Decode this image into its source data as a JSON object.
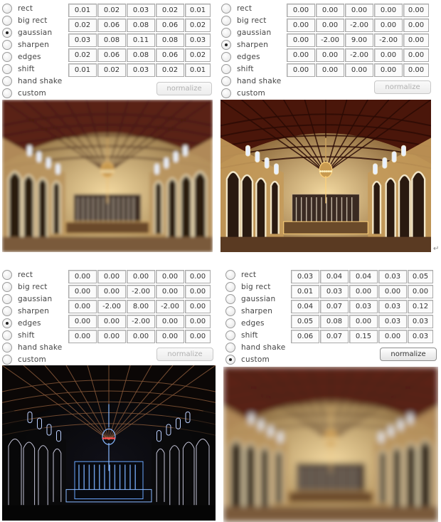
{
  "filter_options": [
    "rect",
    "big rect",
    "gaussian",
    "sharpen",
    "edges",
    "shift",
    "hand shake",
    "custom"
  ],
  "normalize_label": "normalize",
  "newline_mark": "↵",
  "panels": [
    {
      "selected": 2,
      "kernel": [
        [
          "0.01",
          "0.02",
          "0.03",
          "0.02",
          "0.01"
        ],
        [
          "0.02",
          "0.06",
          "0.08",
          "0.06",
          "0.02"
        ],
        [
          "0.03",
          "0.08",
          "0.11",
          "0.08",
          "0.03"
        ],
        [
          "0.02",
          "0.06",
          "0.08",
          "0.06",
          "0.02"
        ],
        [
          "0.01",
          "0.02",
          "0.03",
          "0.02",
          "0.01"
        ]
      ],
      "normalize_enabled": false,
      "image_style": "blur"
    },
    {
      "selected": 3,
      "kernel": [
        [
          "0.00",
          "0.00",
          "0.00",
          "0.00",
          "0.00"
        ],
        [
          "0.00",
          "0.00",
          "-2.00",
          "0.00",
          "0.00"
        ],
        [
          "0.00",
          "-2.00",
          "9.00",
          "-2.00",
          "0.00"
        ],
        [
          "0.00",
          "0.00",
          "-2.00",
          "0.00",
          "0.00"
        ],
        [
          "0.00",
          "0.00",
          "0.00",
          "0.00",
          "0.00"
        ]
      ],
      "normalize_enabled": false,
      "image_style": "sharp"
    },
    {
      "selected": 4,
      "kernel": [
        [
          "0.00",
          "0.00",
          "0.00",
          "0.00",
          "0.00"
        ],
        [
          "0.00",
          "0.00",
          "-2.00",
          "0.00",
          "0.00"
        ],
        [
          "0.00",
          "-2.00",
          "8.00",
          "-2.00",
          "0.00"
        ],
        [
          "0.00",
          "0.00",
          "-2.00",
          "0.00",
          "0.00"
        ],
        [
          "0.00",
          "0.00",
          "0.00",
          "0.00",
          "0.00"
        ]
      ],
      "normalize_enabled": false,
      "image_style": "edges"
    },
    {
      "selected": 7,
      "kernel": [
        [
          "0.03",
          "0.04",
          "0.04",
          "0.03",
          "0.05"
        ],
        [
          "0.01",
          "0.03",
          "0.00",
          "0.00",
          "0.00"
        ],
        [
          "0.04",
          "0.07",
          "0.03",
          "0.03",
          "0.12"
        ],
        [
          "0.05",
          "0.08",
          "0.00",
          "0.03",
          "0.03"
        ],
        [
          "0.06",
          "0.07",
          "0.15",
          "0.00",
          "0.03"
        ]
      ],
      "normalize_enabled": true,
      "image_style": "heavy-blur"
    }
  ]
}
